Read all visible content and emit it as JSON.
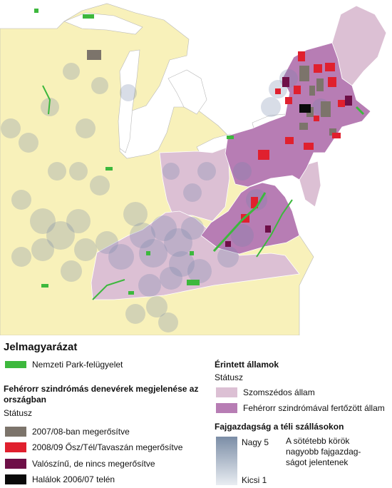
{
  "legend": {
    "title": "Jelmagyarázat",
    "park": {
      "label": "Nemzeti Park-felügyelet",
      "color": "#3db83d"
    },
    "wns": {
      "title": "Fehérorr szindrómás denevérek megjelenése az országban",
      "status": "Státusz",
      "items": [
        {
          "label": "2007/08-ban megerősítve",
          "color": "#7c746b"
        },
        {
          "label": "2008/09 Ősz/Tél/Tavaszán megerősítve",
          "color": "#e0202e"
        },
        {
          "label": "Valószínű, de nincs megerősítve",
          "color": "#6e0f47"
        },
        {
          "label": "Halálok 2006/07 telén",
          "color": "#0a0a0a"
        }
      ]
    },
    "affected": {
      "title": "Érintett államok",
      "status": "Státusz",
      "items": [
        {
          "label": "Szomszédos állam",
          "color": "#dcc0d4"
        },
        {
          "label": "Fehérorr szindrómával fertőzött állam",
          "color": "#b77db4"
        }
      ]
    },
    "richness": {
      "title": "Fajgazdagság a téli szállásokon",
      "high": "Nagy 5",
      "low": "Kicsi 1",
      "note": "A sötétebb körök nagyobb fajgazdag-ságot jelentenek"
    }
  },
  "map_colors": {
    "water": "#ffffff",
    "land": "#f8f1ba",
    "neighbor": "#dcc0d4",
    "infected": "#b77db4",
    "circle": "#7484a8"
  }
}
